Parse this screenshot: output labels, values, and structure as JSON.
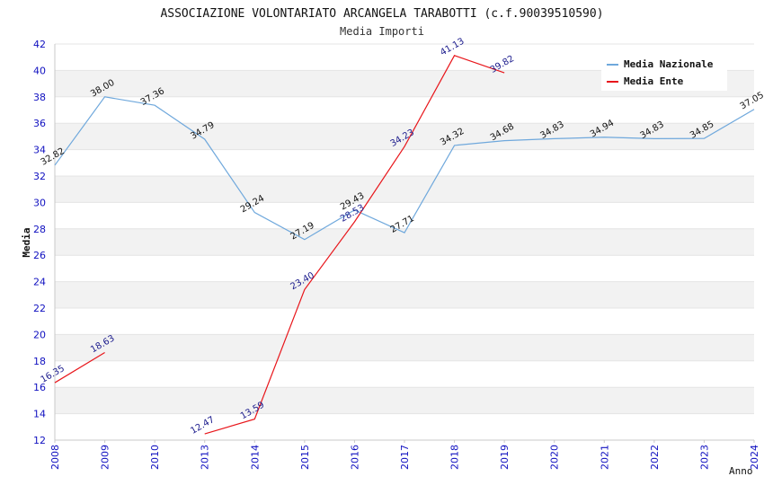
{
  "chart_data": {
    "type": "line",
    "title": "ASSOCIAZIONE VOLONTARIATO ARCANGELA TARABOTTI (c.f.90039510590)",
    "subtitle": "Media Importi",
    "xlabel": "Anno",
    "ylabel": "Media",
    "ylim": [
      12,
      42
    ],
    "yticks": [
      12,
      14,
      16,
      18,
      20,
      22,
      24,
      26,
      28,
      30,
      32,
      34,
      36,
      38,
      40,
      42
    ],
    "categories": [
      "2008",
      "2009",
      "2010",
      "2013",
      "2014",
      "2015",
      "2016",
      "2017",
      "2018",
      "2019",
      "2020",
      "2021",
      "2022",
      "2023",
      "2024"
    ],
    "grid": "horizontal bands",
    "legend_position": "top-right",
    "series": [
      {
        "name": "Media Nazionale",
        "color": "#6fa8dc",
        "label_color": "#111111",
        "values": [
          32.82,
          38.0,
          37.36,
          34.79,
          29.24,
          27.19,
          29.43,
          27.71,
          34.32,
          34.68,
          34.83,
          34.94,
          34.83,
          34.85,
          37.05
        ],
        "labels": [
          "32.82",
          "38.00",
          "37.36",
          "34.79",
          "29.24",
          "27.19",
          "29.43",
          "27.71",
          "34.32",
          "34.68",
          "34.83",
          "34.94",
          "34.83",
          "34.85",
          "37.05"
        ]
      },
      {
        "name": "Media Ente",
        "color": "#e8161b",
        "label_color": "#1a1a8c",
        "values": [
          16.35,
          18.63,
          null,
          12.47,
          13.59,
          23.4,
          28.53,
          34.23,
          41.13,
          39.82,
          null,
          null,
          null,
          null,
          null
        ],
        "labels": [
          "16.35",
          "18.63",
          "",
          "12.47",
          "13.59",
          "23.40",
          "28.53",
          "34.23",
          "41.13",
          "39.82",
          "",
          "",
          "",
          "",
          ""
        ]
      }
    ]
  }
}
